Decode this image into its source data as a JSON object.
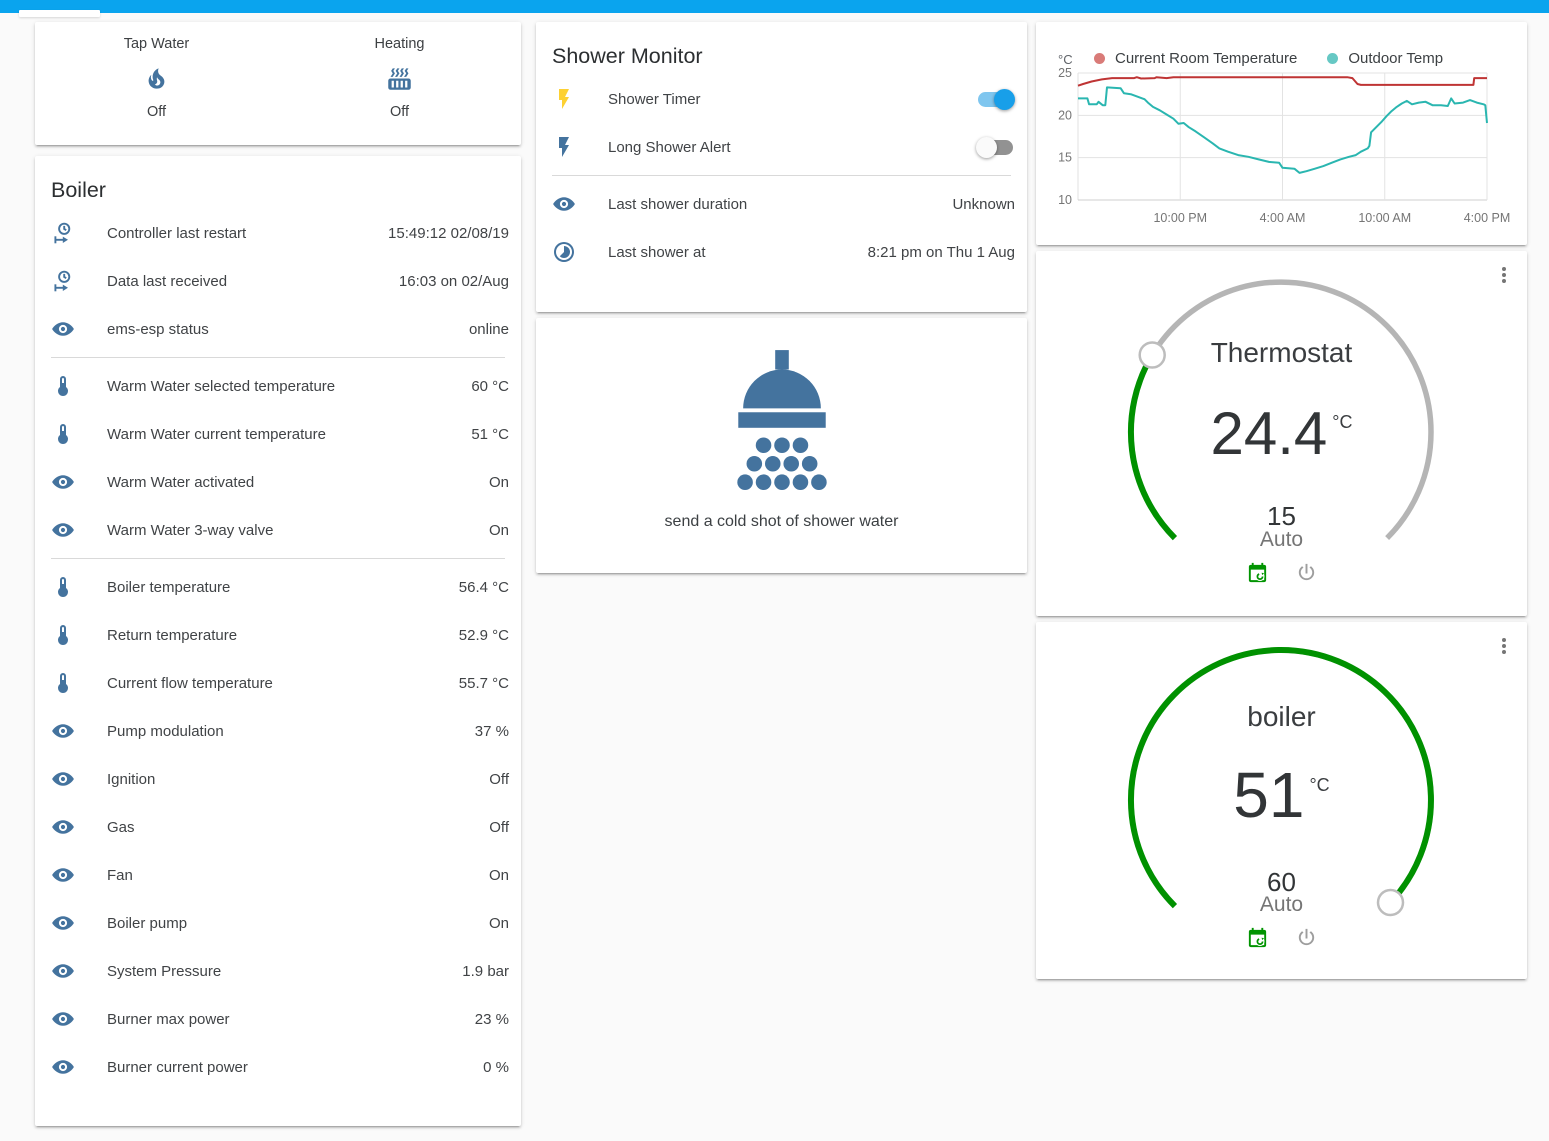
{
  "theme": {
    "topbar_color": "#0aa4ee",
    "icon_color": "#44739e",
    "accent_green": "#009100",
    "track_gray": "#b5b5b5",
    "toggle_on": "#189fe9",
    "toggle_off": "#929292"
  },
  "glance": {
    "items": [
      {
        "label": "Tap Water",
        "icon": "fire",
        "state": "Off"
      },
      {
        "label": "Heating",
        "icon": "radiator",
        "state": "Off"
      }
    ]
  },
  "boiler_card": {
    "title": "Boiler",
    "groups": [
      [
        {
          "icon": "clock-in",
          "label": "Controller last restart",
          "value": "15:49:12 02/08/19"
        },
        {
          "icon": "clock-in",
          "label": "Data last received",
          "value": "16:03 on 02/Aug"
        },
        {
          "icon": "eye",
          "label": "ems-esp status",
          "value": "online"
        }
      ],
      [
        {
          "icon": "thermometer",
          "label": "Warm Water selected temperature",
          "value": "60 °C"
        },
        {
          "icon": "thermometer",
          "label": "Warm Water current temperature",
          "value": "51 °C"
        },
        {
          "icon": "eye",
          "label": "Warm Water activated",
          "value": "On"
        },
        {
          "icon": "eye",
          "label": "Warm Water 3-way valve",
          "value": "On"
        }
      ],
      [
        {
          "icon": "thermometer",
          "label": "Boiler temperature",
          "value": "56.4 °C"
        },
        {
          "icon": "thermometer",
          "label": "Return temperature",
          "value": "52.9 °C"
        },
        {
          "icon": "thermometer",
          "label": "Current flow temperature",
          "value": "55.7 °C"
        },
        {
          "icon": "eye",
          "label": "Pump modulation",
          "value": "37 %"
        },
        {
          "icon": "eye",
          "label": "Ignition",
          "value": "Off"
        },
        {
          "icon": "eye",
          "label": "Gas",
          "value": "Off"
        },
        {
          "icon": "eye",
          "label": "Fan",
          "value": "On"
        },
        {
          "icon": "eye",
          "label": "Boiler pump",
          "value": "On"
        },
        {
          "icon": "eye",
          "label": "System Pressure",
          "value": "1.9 bar"
        },
        {
          "icon": "eye",
          "label": "Burner max power",
          "value": "23 %"
        },
        {
          "icon": "eye",
          "label": "Burner current power",
          "value": "0 %"
        }
      ]
    ]
  },
  "shower_card": {
    "title": "Shower Monitor",
    "groups": [
      [
        {
          "icon": "flash",
          "icon_color": "#fdd133",
          "label": "Shower Timer",
          "toggle": "on"
        },
        {
          "icon": "flash",
          "icon_color": "#44739e",
          "label": "Long Shower Alert",
          "toggle": "off"
        }
      ],
      [
        {
          "icon": "eye",
          "label": "Last shower duration",
          "value": "Unknown"
        },
        {
          "icon": "timelapse",
          "label": "Last shower at",
          "value": "8:21 pm on Thu 1 Aug"
        }
      ]
    ]
  },
  "shower_action": {
    "label": "send a cold shot of shower water"
  },
  "chart_data": {
    "type": "line",
    "unit": "°C",
    "ylim": [
      10,
      25
    ],
    "yticks": [
      25,
      20,
      15,
      10
    ],
    "x_range_hours": 24,
    "xticks": [
      {
        "h": 6,
        "label": "10:00 PM"
      },
      {
        "h": 12,
        "label": "4:00 AM"
      },
      {
        "h": 18,
        "label": "10:00 AM"
      },
      {
        "h": 24,
        "label": "4:00 PM"
      }
    ],
    "grid": true,
    "legend_position": "top",
    "series": [
      {
        "name": "Current Room Temperature",
        "color": "#bf3434",
        "dot": "#d97b78",
        "points": [
          [
            0,
            23.5
          ],
          [
            0.3,
            23.7
          ],
          [
            0.8,
            24.0
          ],
          [
            1.4,
            24.25
          ],
          [
            2,
            24.4
          ],
          [
            3.3,
            24.4
          ],
          [
            3.45,
            24.5
          ],
          [
            3.7,
            24.35
          ],
          [
            4.5,
            24.4
          ],
          [
            4.6,
            24.5
          ],
          [
            5.2,
            24.4
          ],
          [
            5.6,
            24.5
          ],
          [
            7,
            24.5
          ],
          [
            10,
            24.5
          ],
          [
            13,
            24.5
          ],
          [
            15.8,
            24.5
          ],
          [
            16.1,
            24.4
          ],
          [
            16.4,
            23.7
          ],
          [
            16.6,
            23.6
          ],
          [
            19,
            23.6
          ],
          [
            22,
            23.6
          ],
          [
            23.2,
            23.6
          ],
          [
            23.25,
            24.4
          ],
          [
            24,
            24.4
          ]
        ]
      },
      {
        "name": "Outdoor Temp",
        "color": "#2ab6b0",
        "dot": "#66c8c4",
        "points": [
          [
            0,
            22
          ],
          [
            0.55,
            22
          ],
          [
            0.65,
            21.3
          ],
          [
            1.1,
            21.3
          ],
          [
            1.2,
            21.6
          ],
          [
            1.45,
            21.2
          ],
          [
            1.6,
            21.2
          ],
          [
            1.7,
            23.3
          ],
          [
            2.5,
            23.2
          ],
          [
            2.7,
            22.6
          ],
          [
            3.1,
            22.5
          ],
          [
            3.5,
            22.2
          ],
          [
            3.9,
            21.9
          ],
          [
            4.1,
            21.5
          ],
          [
            4.4,
            21.0
          ],
          [
            4.8,
            20.6
          ],
          [
            5.2,
            20.1
          ],
          [
            5.6,
            19.6
          ],
          [
            5.9,
            19.0
          ],
          [
            6.2,
            19.1
          ],
          [
            6.5,
            18.6
          ],
          [
            6.9,
            18.1
          ],
          [
            7.4,
            17.4
          ],
          [
            7.9,
            16.7
          ],
          [
            8.3,
            16.1
          ],
          [
            8.8,
            15.7
          ],
          [
            9.4,
            15.3
          ],
          [
            10,
            15.1
          ],
          [
            10.6,
            14.8
          ],
          [
            11.2,
            14.5
          ],
          [
            11.8,
            14.4
          ],
          [
            12,
            13.8
          ],
          [
            12.7,
            13.7
          ],
          [
            13,
            13.2
          ],
          [
            13.4,
            13.4
          ],
          [
            13.9,
            13.7
          ],
          [
            14.4,
            14.0
          ],
          [
            14.9,
            14.4
          ],
          [
            15.4,
            14.8
          ],
          [
            15.9,
            15.1
          ],
          [
            16.3,
            15.3
          ],
          [
            16.6,
            15.7
          ],
          [
            17,
            16.1
          ],
          [
            17.1,
            16.4
          ],
          [
            17.2,
            18.0
          ],
          [
            17.5,
            18.6
          ],
          [
            17.8,
            19.2
          ],
          [
            18.1,
            19.9
          ],
          [
            18.4,
            20.5
          ],
          [
            18.7,
            21.0
          ],
          [
            19,
            21.4
          ],
          [
            19.3,
            21.7
          ],
          [
            19.6,
            21.3
          ],
          [
            20,
            21.5
          ],
          [
            20.4,
            21.6
          ],
          [
            20.8,
            21.2
          ],
          [
            21.3,
            21.2
          ],
          [
            21.7,
            21.1
          ],
          [
            21.9,
            22.0
          ],
          [
            22.1,
            21.4
          ],
          [
            22.6,
            21.5
          ],
          [
            23,
            21.8
          ],
          [
            23.4,
            21.5
          ],
          [
            23.8,
            21.3
          ],
          [
            23.9,
            21.2
          ],
          [
            24,
            19.1
          ]
        ]
      }
    ]
  },
  "thermostat_card": {
    "title": "Thermostat",
    "value": "24.4",
    "unit": "°C",
    "setpoint": "15",
    "mode": "Auto",
    "fraction": 0.281,
    "arc_color": "#009100",
    "track_color": "#b5b5b5",
    "actions": [
      {
        "icon": "calendar-sync",
        "color": "#019401"
      },
      {
        "icon": "power",
        "color": "#9e9e9e"
      }
    ]
  },
  "boiler_gauge_card": {
    "title": "boiler",
    "value": "51",
    "unit": "°C",
    "setpoint": "60",
    "mode": "Auto",
    "fraction": 0.993,
    "arc_color": "#009100",
    "track_color": "#b5b5b5",
    "actions": [
      {
        "icon": "calendar-sync",
        "color": "#019401"
      },
      {
        "icon": "power",
        "color": "#9e9e9e"
      }
    ]
  }
}
